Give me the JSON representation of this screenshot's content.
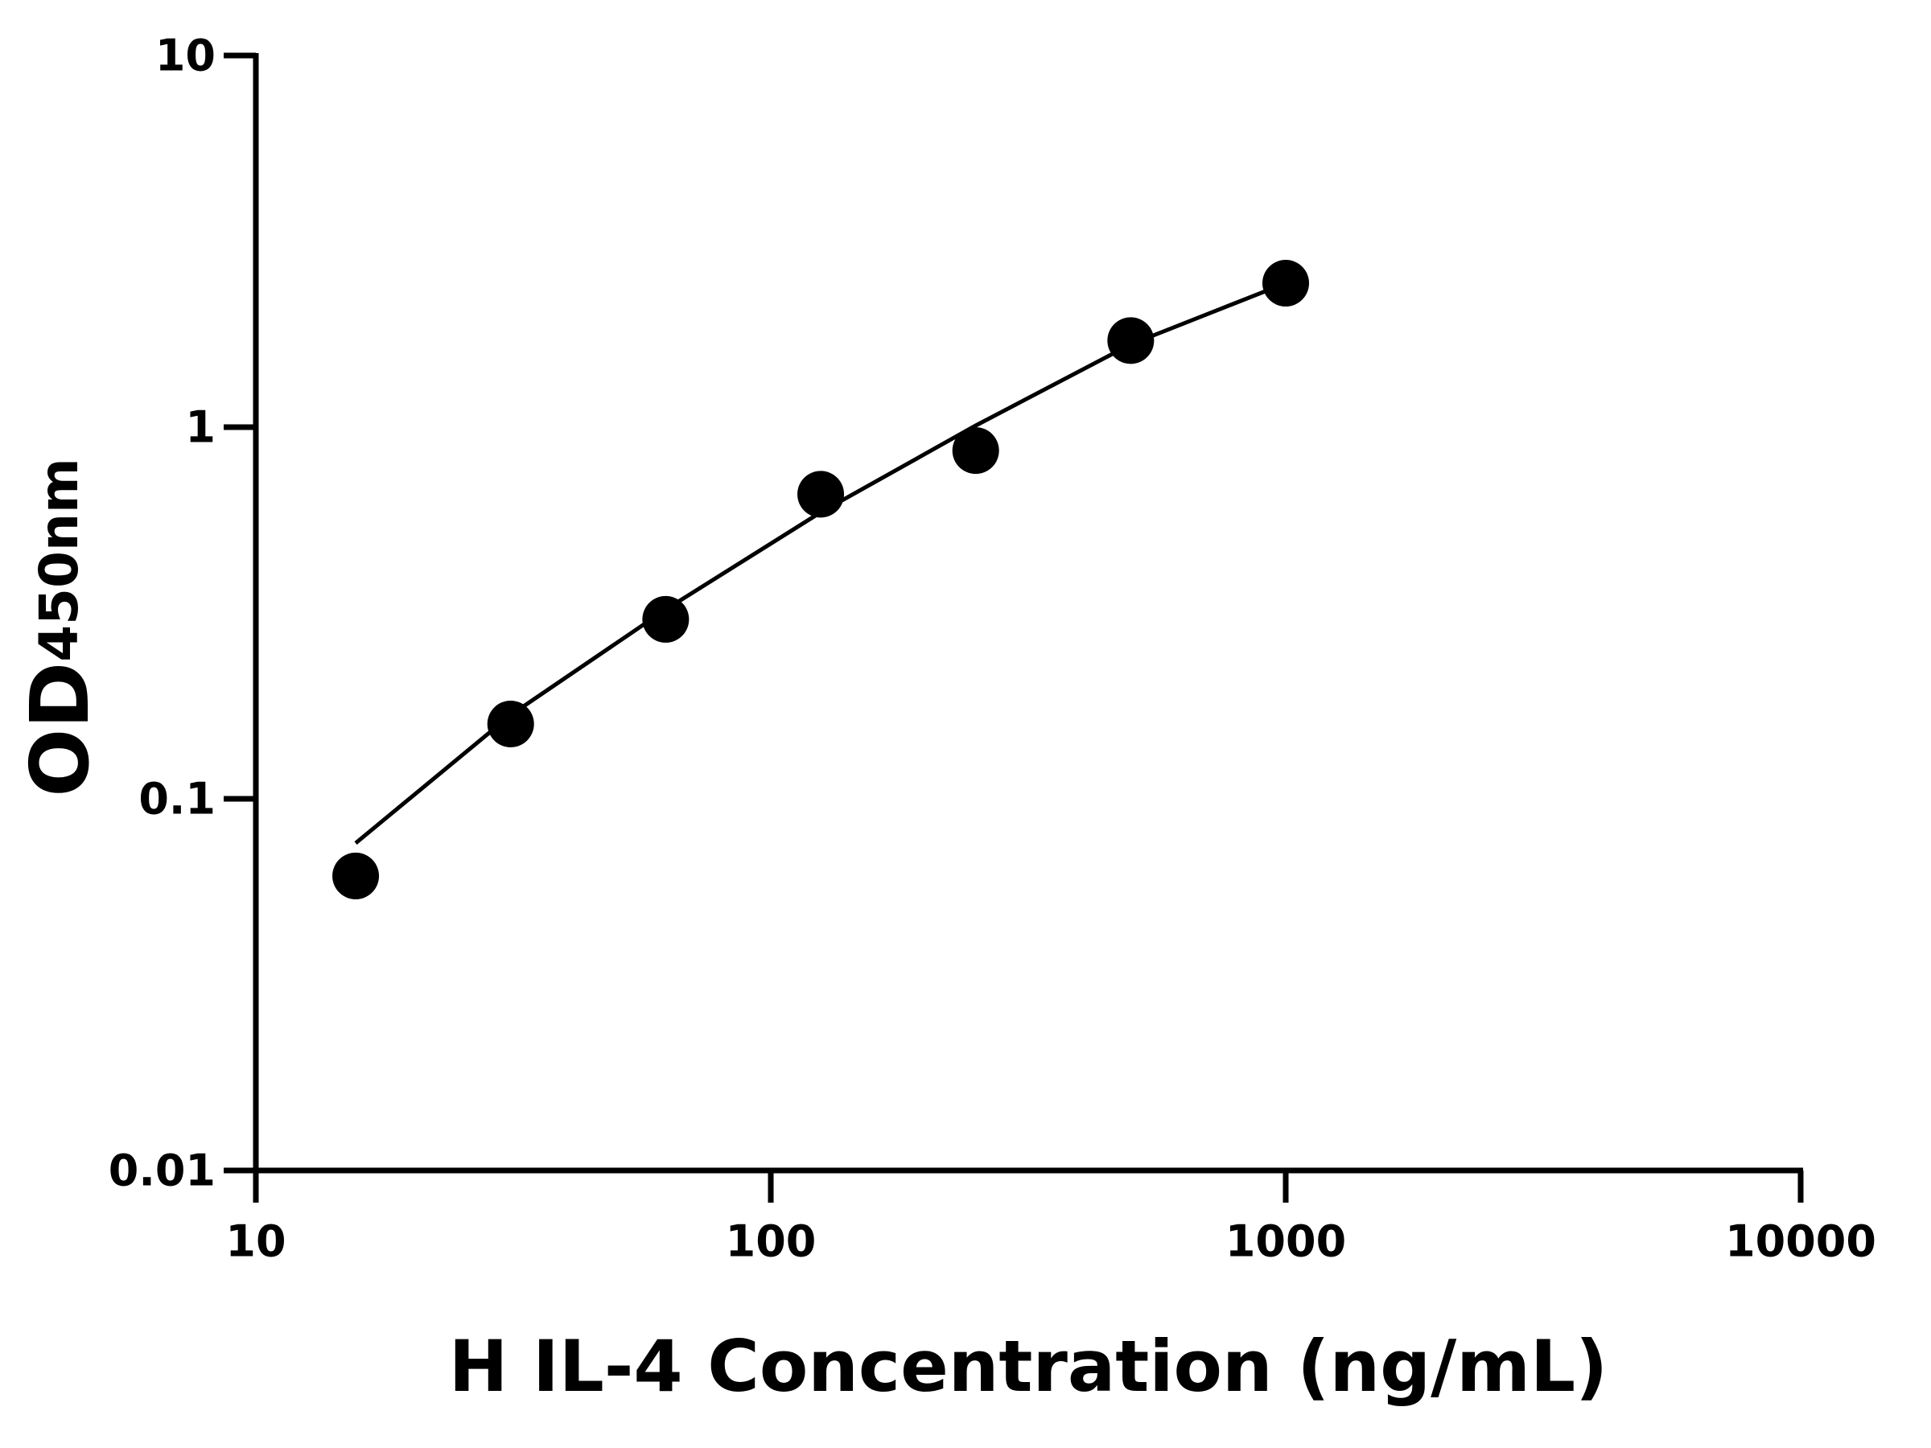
{
  "chart_data": {
    "type": "scatter",
    "xlabel": "H IL-4 Concentration (ng/mL)",
    "ylabel": "OD",
    "ylabel_sub": "450nm",
    "x": [
      15.625,
      31.25,
      62.5,
      125,
      250,
      500,
      1000
    ],
    "values": [
      0.062,
      0.159,
      0.304,
      0.66,
      0.865,
      1.71,
      2.44
    ],
    "color": "#000000",
    "fit": {
      "x": [
        15.625,
        31.25,
        62.5,
        125,
        250,
        500,
        1000
      ],
      "values": [
        0.076,
        0.168,
        0.323,
        0.59,
        1.01,
        1.67,
        2.44
      ],
      "color": "#000000"
    },
    "xscale": "log",
    "yscale": "log",
    "xlim": [
      10,
      10000
    ],
    "ylim": [
      0.01,
      10
    ],
    "xticks": [
      10,
      100,
      1000,
      10000
    ],
    "yticks": [
      0.01,
      0.1,
      1,
      10
    ],
    "grid": false
  }
}
